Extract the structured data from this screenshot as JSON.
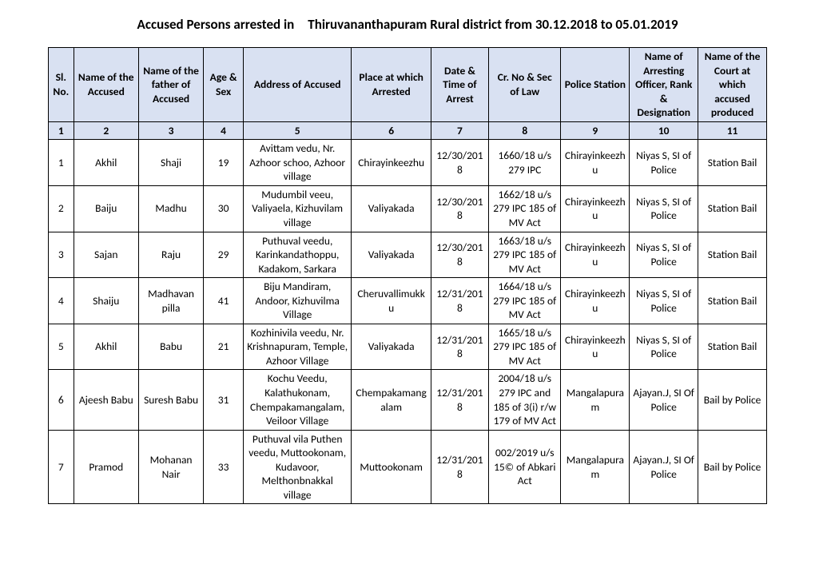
{
  "title": "Accused Persons arrested in Thiruvananthapuram Rural  district from   30.12.2018 to 05.01.2019",
  "headers": [
    "Sl. No.",
    "Name of the Accused",
    "Name of the father of Accused",
    "Age & Sex",
    "Address of Accused",
    "Place at which Arrested",
    "Date & Time of Arrest",
    "Cr. No & Sec of Law",
    "Police Station",
    "Name of Arresting Officer, Rank & Designation",
    "Name of the Court at which accused produced"
  ],
  "numrow": [
    "1",
    "2",
    "3",
    "4",
    "5",
    "6",
    "7",
    "8",
    "9",
    "10",
    "11"
  ],
  "rows": [
    {
      "c": [
        "1",
        "Akhil",
        "Shaji",
        "19",
        "Avittam vedu, Nr. Azhoor schoo, Azhoor village",
        "Chirayinkeezhu",
        "12/30/2018",
        "1660/18 u/s 279 IPC",
        "Chirayinkeezhu",
        "Niyas S, SI of Police",
        "Station Bail"
      ]
    },
    {
      "c": [
        "2",
        "Baiju",
        "Madhu",
        "30",
        "Mudumbil veeu, Valiyaela, Kizhuvilam village",
        "Valiyakada",
        "12/30/2018",
        "1662/18 u/s 279 IPC 185 of MV Act",
        "Chirayinkeezhu",
        "Niyas S, SI of Police",
        "Station Bail"
      ]
    },
    {
      "c": [
        "3",
        "Sajan",
        "Raju",
        "29",
        "Puthuval veedu, Karinkandathoppu, Kadakom, Sarkara",
        "Valiyakada",
        "12/30/2018",
        "1663/18 u/s 279 IPC 185 of MV Act",
        "Chirayinkeezhu",
        "Niyas S, SI of Police",
        "Station Bail"
      ]
    },
    {
      "c": [
        "4",
        "Shaiju",
        "Madhavan pilla",
        "41",
        "Biju Mandiram, Andoor, Kizhuvilma Village",
        "Cheruvallimukku",
        "12/31/2018",
        "1664/18 u/s 279 IPC 185 of MV Act",
        "Chirayinkeezhu",
        "Niyas S, SI of Police",
        "Station Bail"
      ]
    },
    {
      "c": [
        "5",
        "Akhil",
        "Babu",
        "21",
        "Kozhinivila veedu, Nr. Krishnapuram, Temple, Azhoor Village",
        "Valiyakada",
        "12/31/2018",
        "1665/18 u/s 279 IPC 185 of MV Act",
        "Chirayinkeezhu",
        "Niyas S, SI of Police",
        "Station Bail"
      ]
    },
    {
      "c": [
        "6",
        "Ajeesh Babu",
        "Suresh Babu",
        "31",
        "Kochu Veedu, Kalathukonam, Chempakamangalam, Veiloor Village",
        "Chempakamangalam",
        "12/31/2018",
        "2004/18 u/s 279 IPC and 185 of  3(i) r/w 179 of  MV Act",
        "Mangalapuram",
        "Ajayan.J, SI Of Police",
        "Bail by Police"
      ]
    },
    {
      "c": [
        "7",
        "Pramod",
        "Mohanan Nair",
        "33",
        "Puthuval vila Puthen veedu, Muttookonam, Kudavoor, Melthonbnakkal village",
        "Muttookonam",
        "12/31/2018",
        "002/2019   u/s 15© of Abkari Act",
        "Mangalapuram",
        "Ajayan.J, SI Of Police",
        "Bail by Police"
      ]
    }
  ]
}
